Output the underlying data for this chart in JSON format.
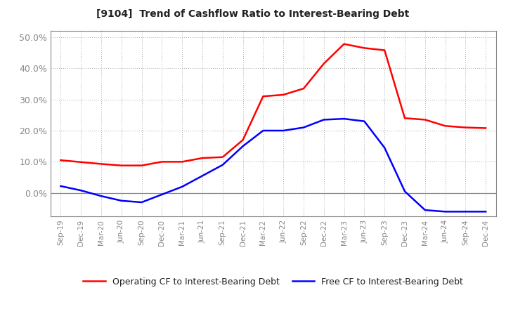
{
  "title": "[9104]  Trend of Cashflow Ratio to Interest-Bearing Debt",
  "labels": [
    "Sep-19",
    "Dec-19",
    "Mar-20",
    "Jun-20",
    "Sep-20",
    "Dec-20",
    "Mar-21",
    "Jun-21",
    "Sep-21",
    "Dec-21",
    "Mar-22",
    "Jun-22",
    "Sep-22",
    "Dec-22",
    "Mar-23",
    "Jun-23",
    "Sep-23",
    "Dec-23",
    "Mar-24",
    "Jun-24",
    "Sep-24",
    "Dec-24"
  ],
  "operating_cf": [
    0.105,
    0.099,
    0.093,
    0.088,
    0.088,
    0.1,
    0.1,
    0.112,
    0.115,
    0.17,
    0.31,
    0.315,
    0.335,
    0.415,
    0.478,
    0.465,
    0.458,
    0.24,
    0.235,
    0.215,
    0.21,
    0.208
  ],
  "free_cf": [
    0.022,
    0.008,
    -0.01,
    -0.025,
    -0.03,
    -0.005,
    0.02,
    0.055,
    0.09,
    0.15,
    0.2,
    0.2,
    0.21,
    0.235,
    0.238,
    0.23,
    0.145,
    0.005,
    -0.055,
    -0.06,
    -0.06,
    -0.06
  ],
  "operating_color": "#ff0000",
  "free_color": "#0000ff",
  "background_color": "#ffffff",
  "plot_bg_color": "#ffffff",
  "grid_color": "#aaaaaa",
  "zero_line_color": "#888888",
  "tick_label_color": "#888888",
  "spine_color": "#888888",
  "ylim": [
    -0.075,
    0.52
  ],
  "yticks": [
    0.0,
    0.1,
    0.2,
    0.3,
    0.4,
    0.5
  ],
  "legend_op_label": "Operating CF to Interest-Bearing Debt",
  "legend_free_label": "Free CF to Interest-Bearing Debt",
  "line_width": 1.8
}
